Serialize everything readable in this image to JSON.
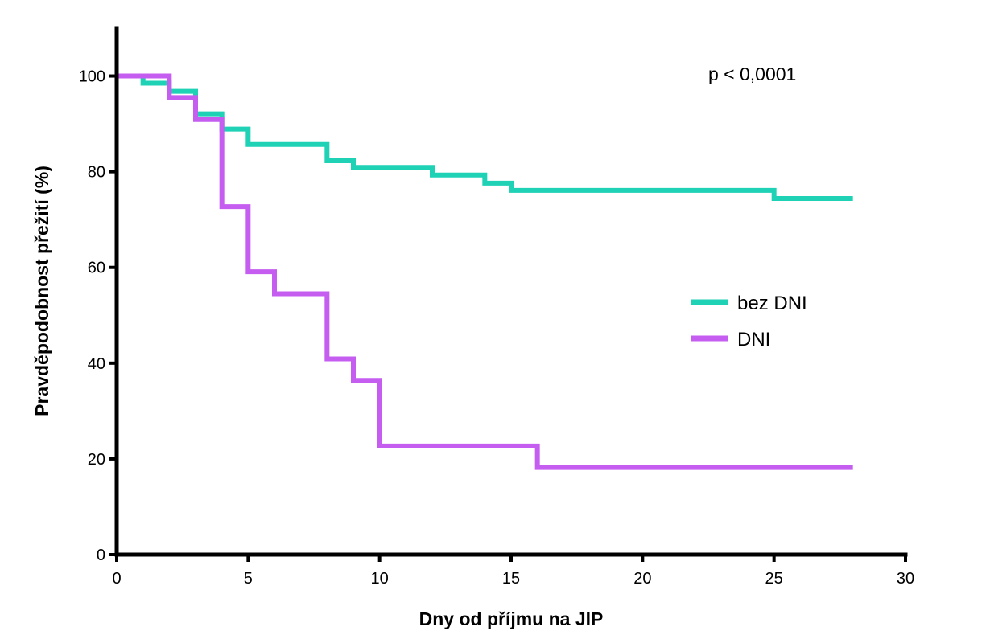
{
  "chart_data": {
    "type": "line",
    "subtype": "step",
    "xlabel": "Dny od příjmu na JIP",
    "ylabel": "Pravděpodobnost přežití (%)",
    "xlim": [
      0,
      30
    ],
    "ylim": [
      0,
      110
    ],
    "xticks": [
      "0",
      "5",
      "10",
      "15",
      "20",
      "25",
      "30"
    ],
    "yticks": [
      "0",
      "20",
      "40",
      "60",
      "80",
      "100"
    ],
    "grid": false,
    "legend_position": "right-middle",
    "annotation": "p < 0,0001",
    "series": [
      {
        "name": "bez DNI",
        "color": "#1fd1b5",
        "x": [
          0,
          1,
          2,
          3,
          4,
          5,
          8,
          9,
          12,
          14,
          15,
          25,
          28
        ],
        "y": [
          100,
          98.5,
          96.8,
          92.1,
          88.9,
          85.7,
          82.3,
          80.9,
          79.3,
          77.6,
          76.1,
          74.4,
          74.4
        ]
      },
      {
        "name": "DNI",
        "color": "#c45df0",
        "x": [
          0,
          2,
          3,
          4,
          5,
          6,
          8,
          9,
          10,
          16,
          28
        ],
        "y": [
          100,
          95.5,
          90.9,
          72.7,
          59.1,
          54.5,
          40.9,
          36.4,
          22.7,
          18.2,
          18.2
        ]
      }
    ]
  }
}
